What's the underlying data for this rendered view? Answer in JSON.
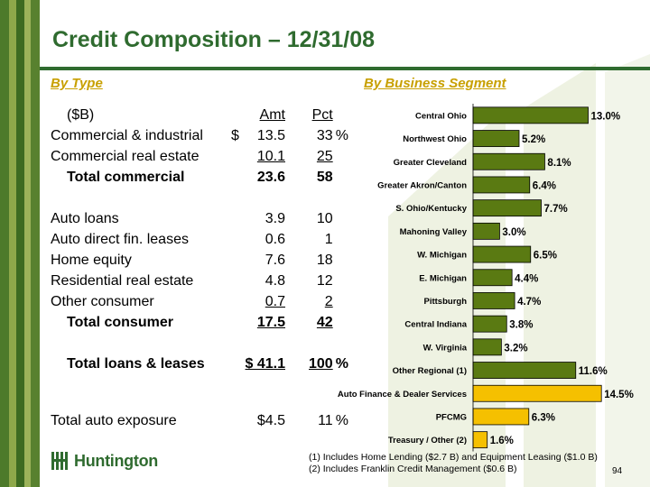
{
  "title": "Credit Composition – 12/31/08",
  "by_type": {
    "heading": "By Type",
    "header": {
      "label": "($B)",
      "amt": "Amt",
      "pct": "Pct"
    },
    "rows": [
      {
        "label": "Commercial & industrial",
        "dollar": "$",
        "amt": "13.5",
        "pct": "33",
        "suffix": "%"
      },
      {
        "label": "Commercial real estate",
        "amt": "10.1",
        "pct": "25"
      },
      {
        "label": "Total commercial",
        "amt": "23.6",
        "pct": "58"
      },
      {
        "label": "Auto loans",
        "amt": "3.9",
        "pct": "10"
      },
      {
        "label": "Auto direct fin. leases",
        "amt": "0.6",
        "pct": "1"
      },
      {
        "label": "Home equity",
        "amt": "7.6",
        "pct": "18"
      },
      {
        "label": "Residential real estate",
        "amt": "4.8",
        "pct": "12"
      },
      {
        "label": "Other consumer",
        "amt": "0.7",
        "pct": "2"
      },
      {
        "label": "Total consumer",
        "amt": "17.5",
        "pct": "42"
      },
      {
        "label": "Total loans & leases",
        "amt": "$ 41.1",
        "pct": "100",
        "suffix": "%"
      },
      {
        "label": "Total auto exposure",
        "amt": "$4.5",
        "pct": "11",
        "suffix": "%"
      }
    ]
  },
  "by_segment_heading": "By Business Segment",
  "chart_data": {
    "type": "bar",
    "orientation": "horizontal",
    "categories": [
      "Central Ohio",
      "Northwest Ohio",
      "Greater Cleveland",
      "Greater Akron/Canton",
      "S. Ohio/Kentucky",
      "Mahoning Valley",
      "W. Michigan",
      "E. Michigan",
      "Pittsburgh",
      "Central Indiana",
      "W. Virginia",
      "Other Regional (1)",
      "Auto Finance & Dealer Services",
      "PFCMG",
      "Treasury / Other (2)"
    ],
    "values": [
      13.0,
      5.2,
      8.1,
      6.4,
      7.7,
      3.0,
      6.5,
      4.4,
      4.7,
      3.8,
      3.2,
      11.6,
      14.5,
      6.3,
      1.6
    ],
    "value_labels": [
      "13.0%",
      "5.2%",
      "8.1%",
      "6.4%",
      "7.7%",
      "3.0%",
      "6.5%",
      "4.4%",
      "4.7%",
      "3.8%",
      "3.2%",
      "11.6%",
      "14.5%",
      "6.3%",
      "1.6%"
    ],
    "highlighted": [
      "Auto Finance & Dealer Services",
      "PFCMG",
      "Treasury / Other (2)"
    ],
    "colors": {
      "bar": "#5a7a12",
      "highlight": "#f5c000",
      "border": "#000000"
    },
    "xlim": [
      0,
      15.5
    ],
    "grid": false
  },
  "notes": [
    "(1)  Includes Home Lending ($2.7 B) and Equipment Leasing ($1.0 B)",
    "(2)  Includes  Franklin Credit Management ($0.6 B)"
  ],
  "page_number": "94",
  "logo": {
    "text": "Huntington",
    "icon": "huntington-logo-icon"
  },
  "colors": {
    "title": "#2f6b2f",
    "subheading": "#c8a000",
    "stripe_dark": "#3d6b21",
    "stripe_light": "#7f9d3a"
  }
}
